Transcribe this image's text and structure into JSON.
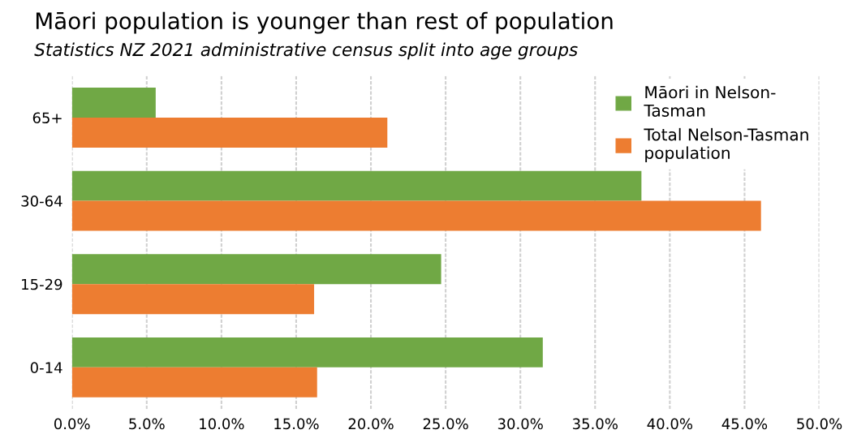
{
  "chart_data": {
    "type": "bar",
    "orientation": "horizontal",
    "title": "Māori population is younger than rest of population",
    "subtitle": "Statistics NZ 2021 administrative census split into age groups",
    "categories": [
      "65+",
      "30-64",
      "15-29",
      "0-14"
    ],
    "series": [
      {
        "name": "Māori in Nelson-Tasman",
        "color": "#70a845",
        "values": [
          5.6,
          38.1,
          24.7,
          31.5
        ]
      },
      {
        "name": "Total Nelson-Tasman population",
        "color": "#ed7d31",
        "values": [
          21.1,
          46.1,
          16.2,
          16.4
        ]
      }
    ],
    "xlim": [
      0,
      50
    ],
    "xticks": [
      {
        "value": 0,
        "label": "0.0%"
      },
      {
        "value": 5,
        "label": "5.0%"
      },
      {
        "value": 10,
        "label": "10.0%"
      },
      {
        "value": 15,
        "label": "15.0%"
      },
      {
        "value": 20,
        "label": "20.0%"
      },
      {
        "value": 25,
        "label": "25.0%"
      },
      {
        "value": 30,
        "label": "30.0%"
      },
      {
        "value": 35,
        "label": "35.0%"
      },
      {
        "value": 40,
        "label": "40.0%"
      },
      {
        "value": 45,
        "label": "45.0%"
      },
      {
        "value": 50,
        "label": "50.0%"
      }
    ],
    "grid": "x",
    "legend": "top right"
  }
}
